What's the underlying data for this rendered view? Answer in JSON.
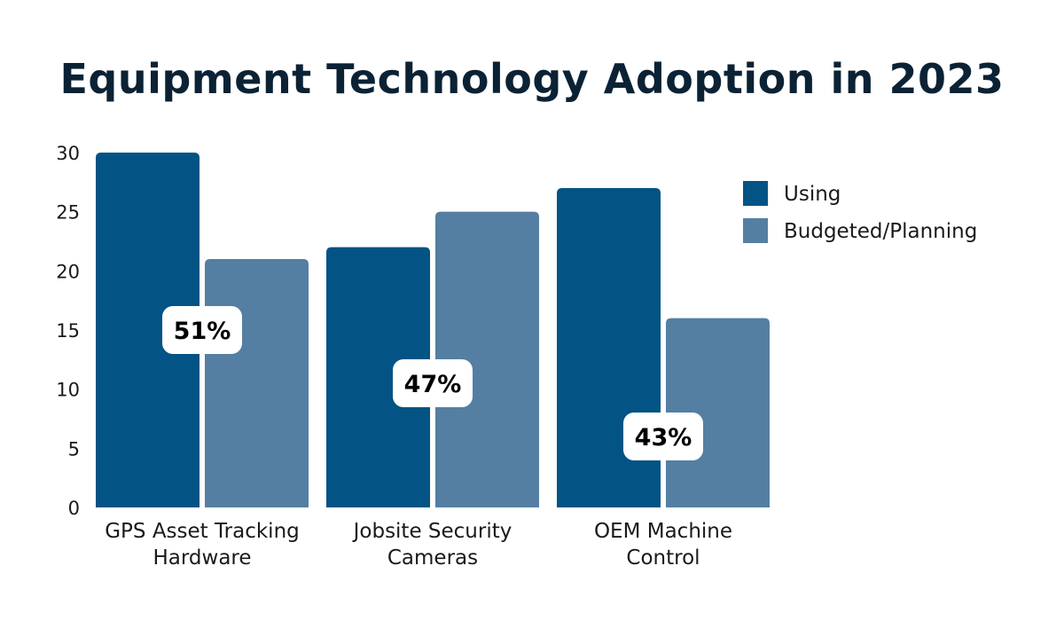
{
  "chart_data": {
    "type": "bar",
    "title": "Equipment Technology Adoption in 2023",
    "categories": [
      [
        "GPS Asset Tracking",
        "Hardware"
      ],
      [
        "Jobsite Security",
        "Cameras"
      ],
      [
        "OEM Machine",
        "Control"
      ]
    ],
    "series": [
      {
        "name": "Using",
        "values": [
          30,
          22,
          27
        ],
        "color": "#035384"
      },
      {
        "name": "Budgeted/Planning",
        "values": [
          21,
          25,
          16
        ],
        "color": "#547fa3"
      }
    ],
    "annotations": [
      {
        "text": "51%",
        "category": 0,
        "y": 15
      },
      {
        "text": "47%",
        "category": 1,
        "y": 10.5
      },
      {
        "text": "43%",
        "category": 2,
        "y": 6
      }
    ],
    "yticks": [
      "0",
      "5",
      "10",
      "15",
      "20",
      "25",
      "30"
    ],
    "ylim": [
      0,
      30
    ],
    "grid": false,
    "legend_position": "top-right"
  }
}
